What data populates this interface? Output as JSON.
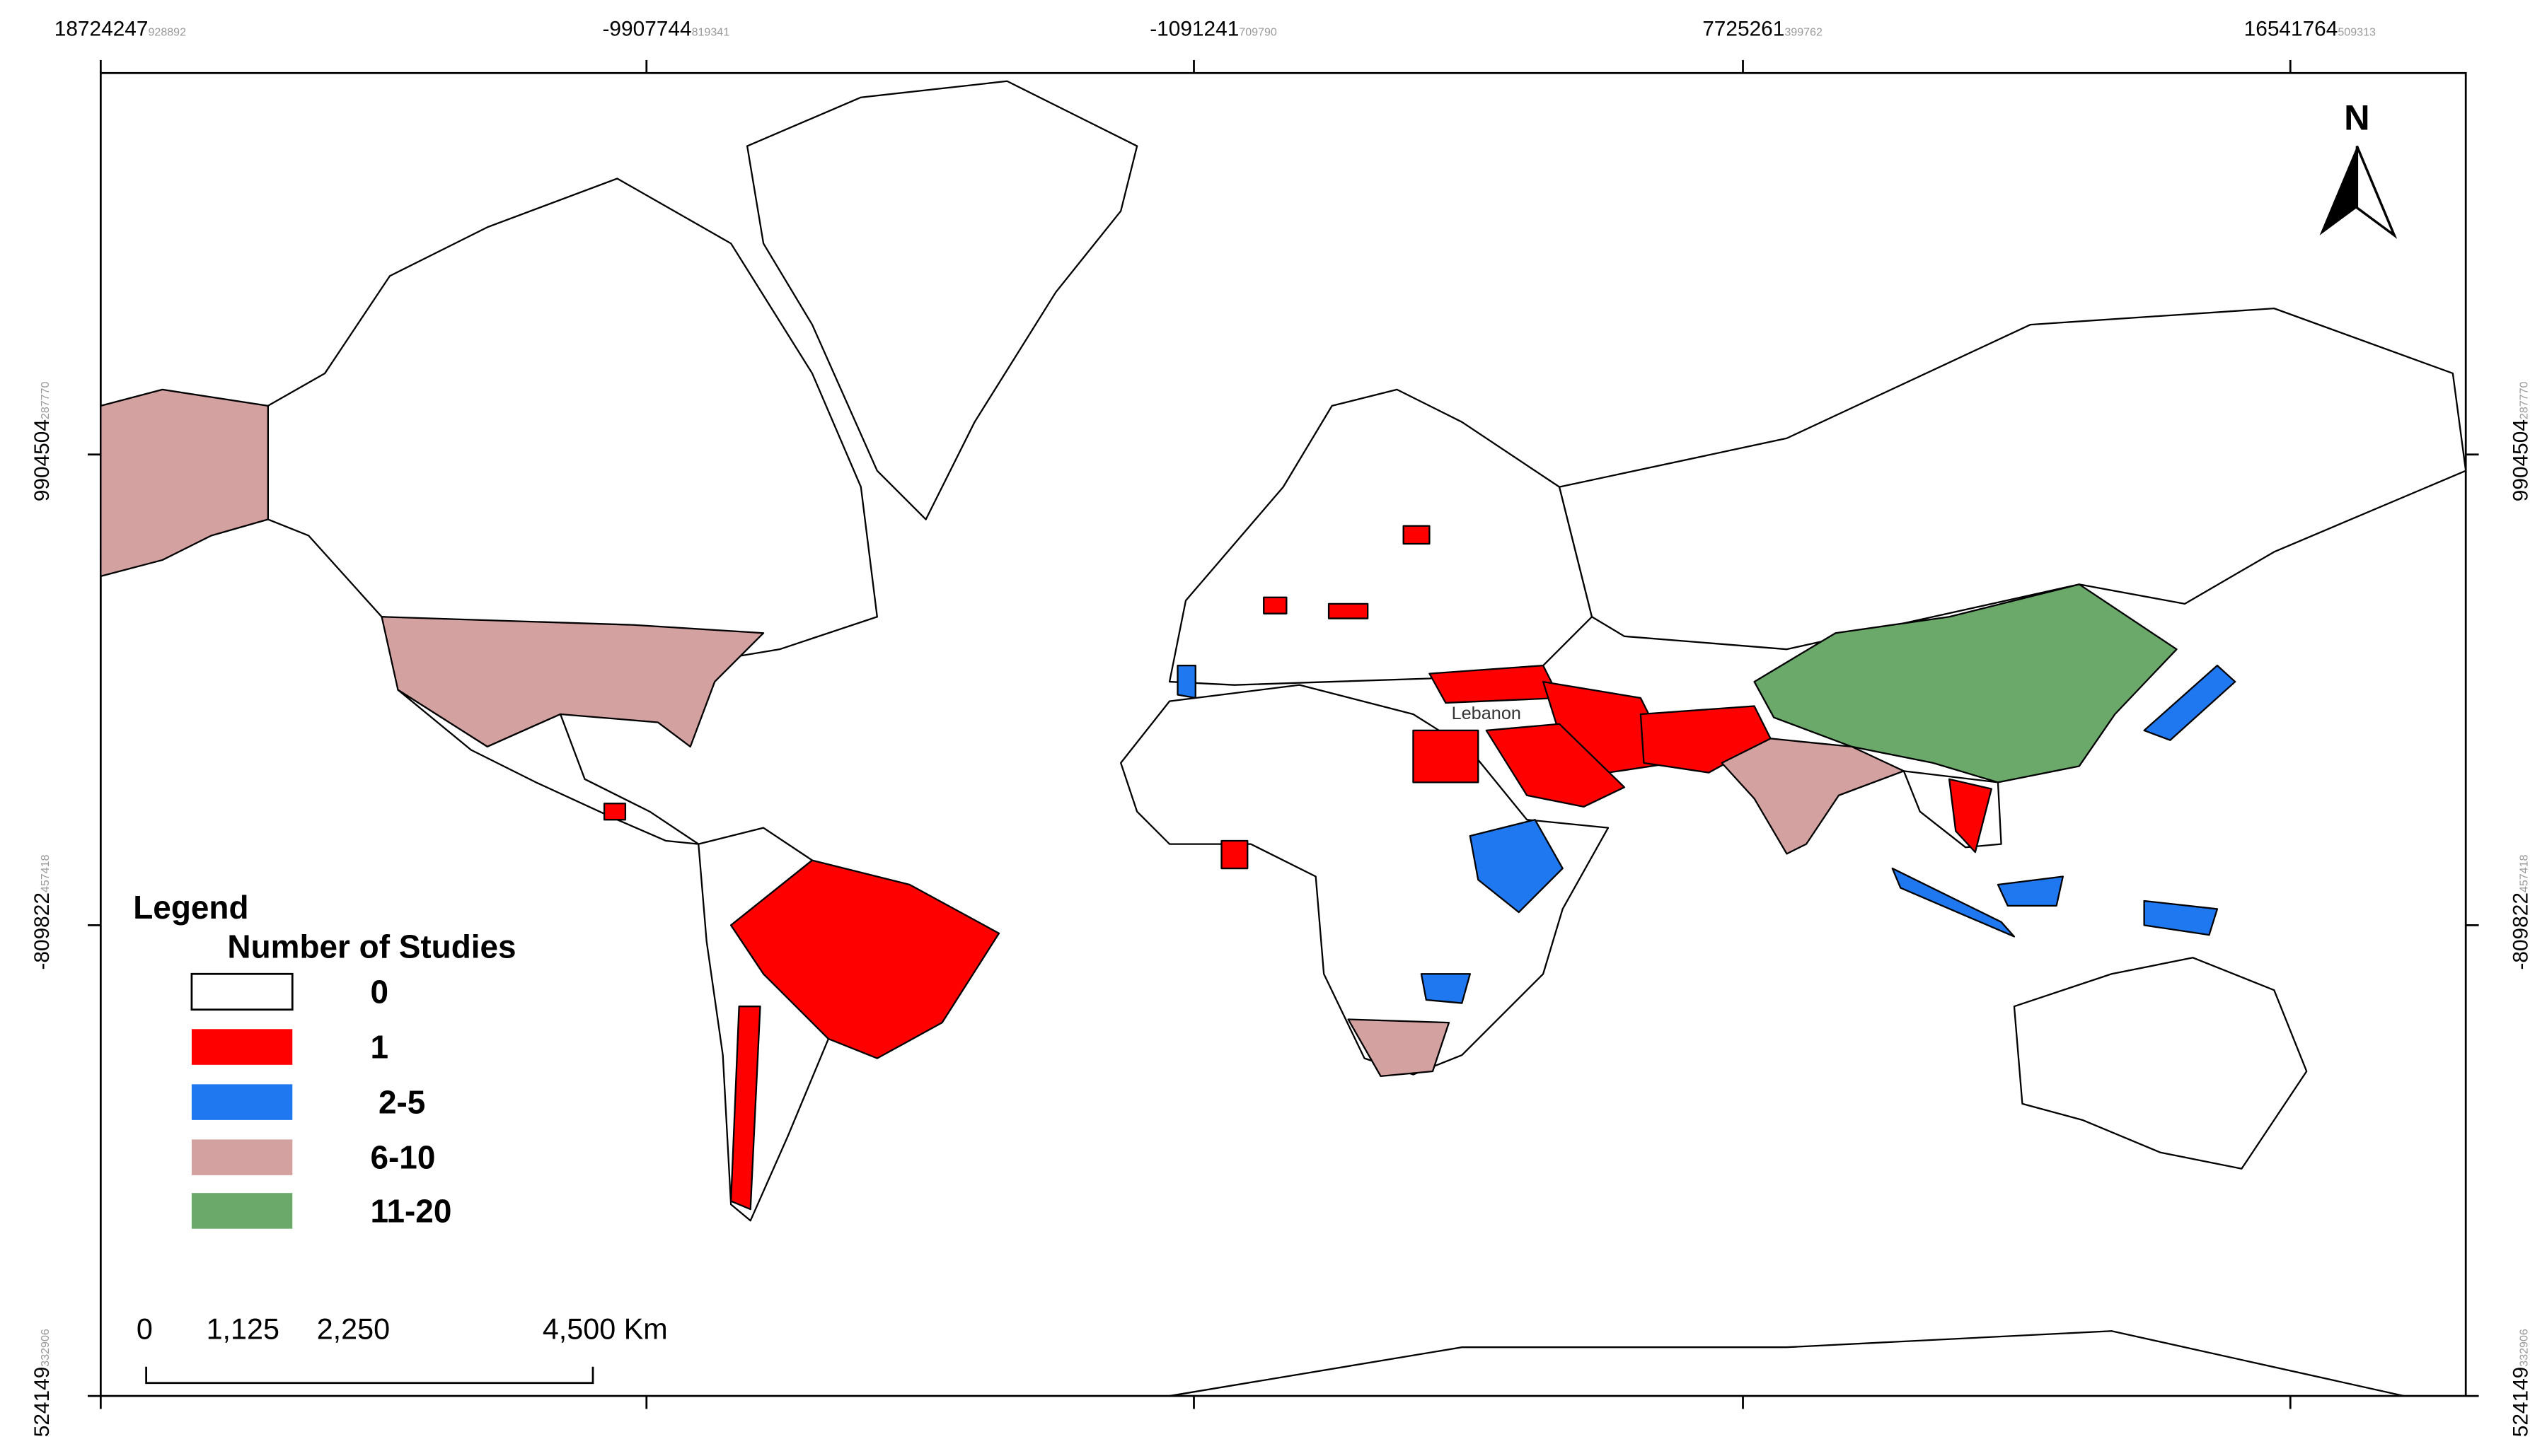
{
  "map": {
    "top_ticks": [
      {
        "label": "18724247",
        "suffix": "928892"
      },
      {
        "label": "-9907744",
        "suffix": "819341"
      },
      {
        "label": "-1091241",
        "suffix": "709790"
      },
      {
        "label": "7725261",
        "suffix": "399762"
      },
      {
        "label": "16541764",
        "suffix": "509313"
      }
    ],
    "side_ticks": [
      {
        "label": "9904504",
        "suffix": "287770"
      },
      {
        "label": "-809822",
        "suffix": "457418"
      },
      {
        "label": "524149",
        "suffix": "332906"
      }
    ],
    "legend": {
      "title": "Legend",
      "subtitle": "Number of Studies",
      "items": [
        {
          "label": "0",
          "color": "#ffffff"
        },
        {
          "label": "1",
          "color": "#ff0000"
        },
        {
          "label": "2-5",
          "color": "#1f78f0"
        },
        {
          "label": "6-10",
          "color": "#d4a1a1"
        },
        {
          "label": "11-20",
          "color": "#6ba96b"
        }
      ]
    },
    "scale_bar": [
      "0",
      "1,125",
      "2,250",
      "4,500 Km"
    ],
    "north": "N",
    "place_label": "Lebanon"
  }
}
